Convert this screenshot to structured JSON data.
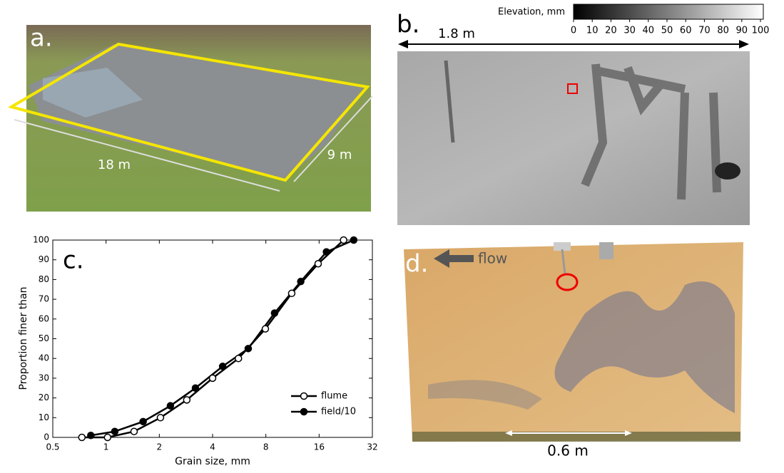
{
  "panels": {
    "a": {
      "label": "a.",
      "length": "18 m",
      "width": "9 m"
    },
    "b": {
      "label": "b.",
      "length": "1.8 m",
      "colorbar": {
        "title": "Elevation, mm",
        "ticks": [
          0,
          10,
          20,
          30,
          40,
          50,
          60,
          70,
          80,
          90,
          100
        ]
      }
    },
    "d": {
      "label": "d.",
      "flow": "flow",
      "length": "0.6 m"
    }
  },
  "chart_data": {
    "type": "line",
    "panel_label": "c.",
    "x_label": "Grain size, mm",
    "y_label": "Proportion finer than",
    "log_x": true,
    "base": 2,
    "xlim": [
      0.5,
      32
    ],
    "xticks": [
      0.5,
      1,
      2,
      4,
      8,
      16,
      32
    ],
    "ylim": [
      0,
      100
    ],
    "yticks": [
      0,
      10,
      20,
      30,
      40,
      50,
      60,
      70,
      80,
      90,
      100
    ],
    "grid": false,
    "legend": "lower-right",
    "series": [
      {
        "name": "flume",
        "color": "#000000",
        "fill": "#ffffff",
        "x": [
          0.73,
          1.02,
          1.44,
          2.03,
          2.86,
          4.0,
          5.6,
          7.95,
          11.2,
          15.8,
          22
        ],
        "values": [
          0,
          0,
          3,
          10,
          19,
          30,
          40,
          55,
          73,
          88,
          100
        ]
      },
      {
        "name": "field/10",
        "color": "#000000",
        "fill": "#000000",
        "x": [
          0.82,
          1.12,
          1.62,
          2.31,
          3.2,
          4.56,
          6.36,
          8.96,
          12.6,
          17.6,
          25.1
        ],
        "values": [
          1,
          3,
          8,
          16,
          25,
          36,
          45,
          63,
          79,
          94,
          100
        ]
      }
    ]
  }
}
